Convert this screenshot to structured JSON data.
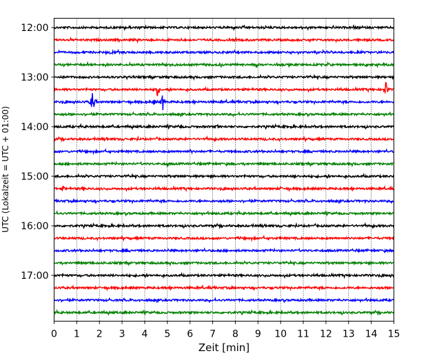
{
  "chart_data": {
    "type": "line",
    "title": "",
    "xlabel": "Zeit  [min]",
    "ylabel": "UTC (Lokalzeit = UTC + 01:00)",
    "xlim": [
      0,
      15
    ],
    "x_ticks": [
      0,
      1,
      2,
      3,
      4,
      5,
      6,
      7,
      8,
      9,
      10,
      11,
      12,
      13,
      14,
      15
    ],
    "y_tick_labels": [
      "12:00",
      "13:00",
      "14:00",
      "15:00",
      "16:00",
      "17:00"
    ],
    "trace_offset_minutes": 15,
    "trace_colors": [
      "#000000",
      "#ff0000",
      "#0000ff",
      "#008000"
    ],
    "vertical_grid": "dotted",
    "traces": [
      {
        "start": "12:00",
        "color": "#000000"
      },
      {
        "start": "12:15",
        "color": "#ff0000"
      },
      {
        "start": "12:30",
        "color": "#0000ff"
      },
      {
        "start": "12:45",
        "color": "#008000"
      },
      {
        "start": "13:00",
        "color": "#000000"
      },
      {
        "start": "13:15",
        "color": "#ff0000",
        "events": [
          {
            "x": 4.55,
            "amp": 12
          },
          {
            "x": 14.65,
            "amp": 14
          }
        ]
      },
      {
        "start": "13:30",
        "color": "#0000ff",
        "events": [
          {
            "x": 1.7,
            "amp": 18
          },
          {
            "x": 4.4,
            "amp": 6
          },
          {
            "x": 4.8,
            "amp": 13
          }
        ]
      },
      {
        "start": "13:45",
        "color": "#008000",
        "events": [
          {
            "x": 14.7,
            "amp": 4
          }
        ]
      },
      {
        "start": "14:00",
        "color": "#000000",
        "events": [
          {
            "x": 5.6,
            "amp": 4
          },
          {
            "x": 7.2,
            "amp": 4
          }
        ]
      },
      {
        "start": "14:15",
        "color": "#ff0000"
      },
      {
        "start": "14:30",
        "color": "#0000ff",
        "events": [
          {
            "x": 6.05,
            "amp": 5
          }
        ]
      },
      {
        "start": "14:45",
        "color": "#008000",
        "events": [
          {
            "x": 5.0,
            "amp": 4
          }
        ]
      },
      {
        "start": "15:00",
        "color": "#000000",
        "events": [
          {
            "x": 10.6,
            "amp": 5
          }
        ]
      },
      {
        "start": "15:15",
        "color": "#ff0000",
        "events": [
          {
            "x": 0.4,
            "amp": 5
          },
          {
            "x": 1.3,
            "amp": 4
          },
          {
            "x": 10.0,
            "amp": 4
          }
        ]
      },
      {
        "start": "15:30",
        "color": "#0000ff"
      },
      {
        "start": "15:45",
        "color": "#008000"
      },
      {
        "start": "16:00",
        "color": "#000000"
      },
      {
        "start": "16:15",
        "color": "#ff0000"
      },
      {
        "start": "16:30",
        "color": "#0000ff"
      },
      {
        "start": "16:45",
        "color": "#008000"
      },
      {
        "start": "17:00",
        "color": "#000000"
      },
      {
        "start": "17:15",
        "color": "#ff0000"
      },
      {
        "start": "17:30",
        "color": "#0000ff"
      },
      {
        "start": "17:45",
        "color": "#008000"
      }
    ]
  }
}
